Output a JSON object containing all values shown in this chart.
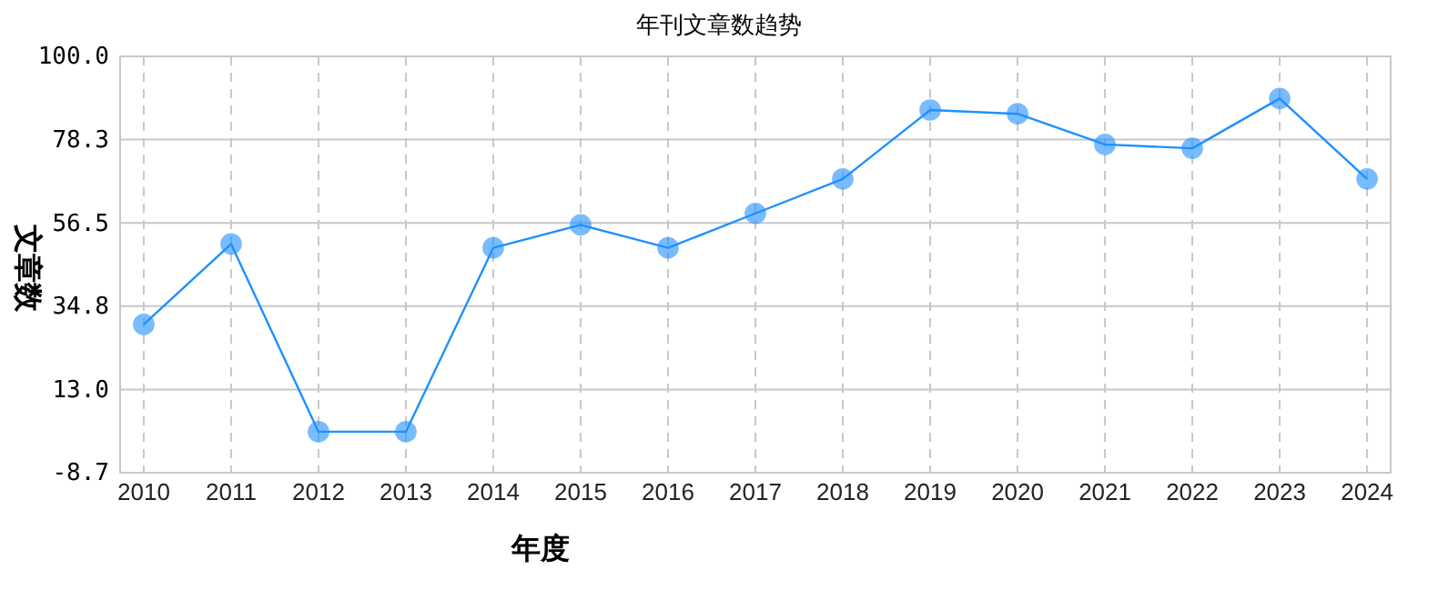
{
  "chart_data": {
    "type": "line",
    "title": "年刊文章数趋势",
    "xlabel": "年度",
    "ylabel": "文章数",
    "categories": [
      "2010",
      "2011",
      "2012",
      "2013",
      "2014",
      "2015",
      "2016",
      "2017",
      "2018",
      "2019",
      "2020",
      "2021",
      "2022",
      "2023",
      "2024"
    ],
    "series": [
      {
        "color": "#1e90ff",
        "values": [
          30,
          51,
          2,
          2,
          50,
          56,
          50,
          59,
          68,
          86,
          85,
          77,
          76,
          89,
          68
        ]
      }
    ],
    "ylim": [
      -8.7,
      100
    ],
    "yticks": [
      {
        "value": -8.7,
        "label": "-8.7"
      },
      {
        "value": 13,
        "label": "13.0"
      },
      {
        "value": 34.8,
        "label": "34.8"
      },
      {
        "value": 56.5,
        "label": "56.5"
      },
      {
        "value": 78.3,
        "label": "78.3"
      },
      {
        "value": 100,
        "label": "100.0"
      }
    ],
    "grid": true,
    "marker": "circle",
    "line_style": "solid"
  }
}
